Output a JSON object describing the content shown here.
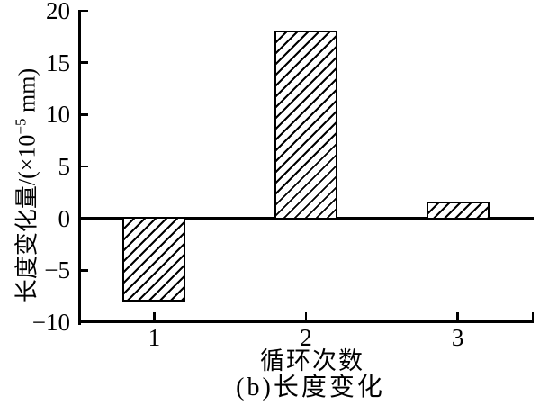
{
  "chart_data": {
    "type": "bar",
    "categories": [
      "1",
      "2",
      "3"
    ],
    "values": [
      -8,
      18,
      1.5
    ],
    "xlabel": "循环次数",
    "ylabel": "长度变化量/(×10⁻⁵ mm)",
    "ylabel_parts": {
      "prefix": "长度变化量/(×10",
      "superscript": "−5",
      "suffix": " mm)"
    },
    "caption": "(b)长度变化",
    "ylim": [
      -10,
      20
    ],
    "yticks": [
      20,
      15,
      10,
      5,
      0,
      -5,
      -10
    ],
    "grid": false,
    "legend": "none",
    "bar_style": {
      "fill": "#ffffff",
      "hatch": "diagonal-forward-slash",
      "border_color": "#000000"
    },
    "axis_color": "#000000",
    "background_color": "#ffffff"
  }
}
